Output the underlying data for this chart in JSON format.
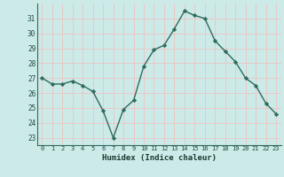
{
  "x": [
    0,
    1,
    2,
    3,
    4,
    5,
    6,
    7,
    8,
    9,
    10,
    11,
    12,
    13,
    14,
    15,
    16,
    17,
    18,
    19,
    20,
    21,
    22,
    23
  ],
  "y": [
    27.0,
    26.6,
    26.6,
    26.8,
    26.5,
    26.1,
    24.8,
    23.0,
    24.9,
    25.5,
    27.8,
    28.9,
    29.2,
    30.3,
    31.5,
    31.2,
    31.0,
    29.5,
    28.8,
    28.1,
    27.0,
    26.5,
    25.3,
    24.6
  ],
  "line_color": "#2e6b5e",
  "marker": "D",
  "marker_size": 2.2,
  "bg_color": "#cceae8",
  "grid_color": "#e8c8c8",
  "xlabel": "Humidex (Indice chaleur)",
  "ylabel_ticks": [
    23,
    24,
    25,
    26,
    27,
    28,
    29,
    30,
    31
  ],
  "xtick_labels": [
    "0",
    "1",
    "2",
    "3",
    "4",
    "5",
    "6",
    "7",
    "8",
    "9",
    "10",
    "11",
    "12",
    "13",
    "14",
    "15",
    "16",
    "17",
    "18",
    "19",
    "20",
    "21",
    "22",
    "23"
  ],
  "ylim": [
    22.5,
    32.0
  ],
  "xlim": [
    -0.5,
    23.5
  ],
  "line_width": 1.0
}
